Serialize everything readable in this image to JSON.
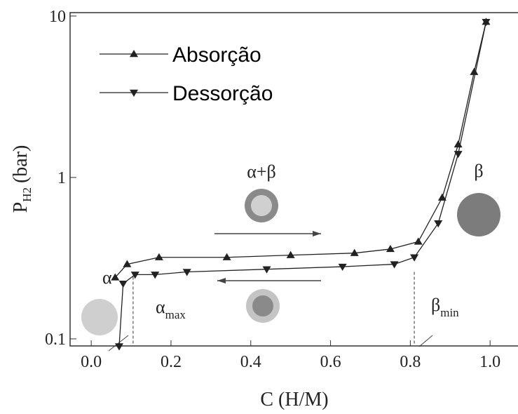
{
  "chart_data": {
    "type": "line",
    "y_label": {
      "main": "P",
      "sub": "H2",
      "unit": "(bar)"
    },
    "x_label": "C (H/M)",
    "xlim": [
      -0.053,
      1.07
    ],
    "ylim": [
      0.0904,
      10.5
    ],
    "y_scale": "log",
    "xticks": [
      {
        "value": 0,
        "label": "0.0"
      },
      0.2,
      0.4,
      0.6,
      0.8,
      {
        "value": 1,
        "label": "1.0"
      }
    ],
    "yticks": [
      0.1,
      1,
      10
    ],
    "legend": "upper left",
    "series": [
      {
        "name": "Absorção",
        "color": "#222",
        "marker": "triangle-up",
        "x": [
          0.06,
          0.09,
          0.17,
          0.34,
          0.5,
          0.66,
          0.75,
          0.82,
          0.88,
          0.92,
          0.96,
          0.99
        ],
        "values": [
          0.24,
          0.29,
          0.32,
          0.32,
          0.33,
          0.34,
          0.36,
          0.4,
          0.75,
          1.6,
          4.5,
          9.2
        ]
      },
      {
        "name": "Dessorção",
        "color": "#222",
        "marker": "triangle-down",
        "x": [
          0.99,
          0.92,
          0.87,
          0.81,
          0.76,
          0.63,
          0.44,
          0.24,
          0.16,
          0.11,
          0.08,
          0.07
        ],
        "values": [
          9.2,
          1.4,
          0.52,
          0.32,
          0.29,
          0.28,
          0.27,
          0.26,
          0.25,
          0.25,
          0.22,
          0.09
        ]
      }
    ],
    "vlines": [
      0.105,
      0.81
    ],
    "annotations": {
      "alpha": "α",
      "alpha_beta": "α+β",
      "beta": "β",
      "alpha_max": {
        "main": "α",
        "sub": "max"
      },
      "beta_min": {
        "main": "β",
        "sub": "min"
      }
    }
  }
}
